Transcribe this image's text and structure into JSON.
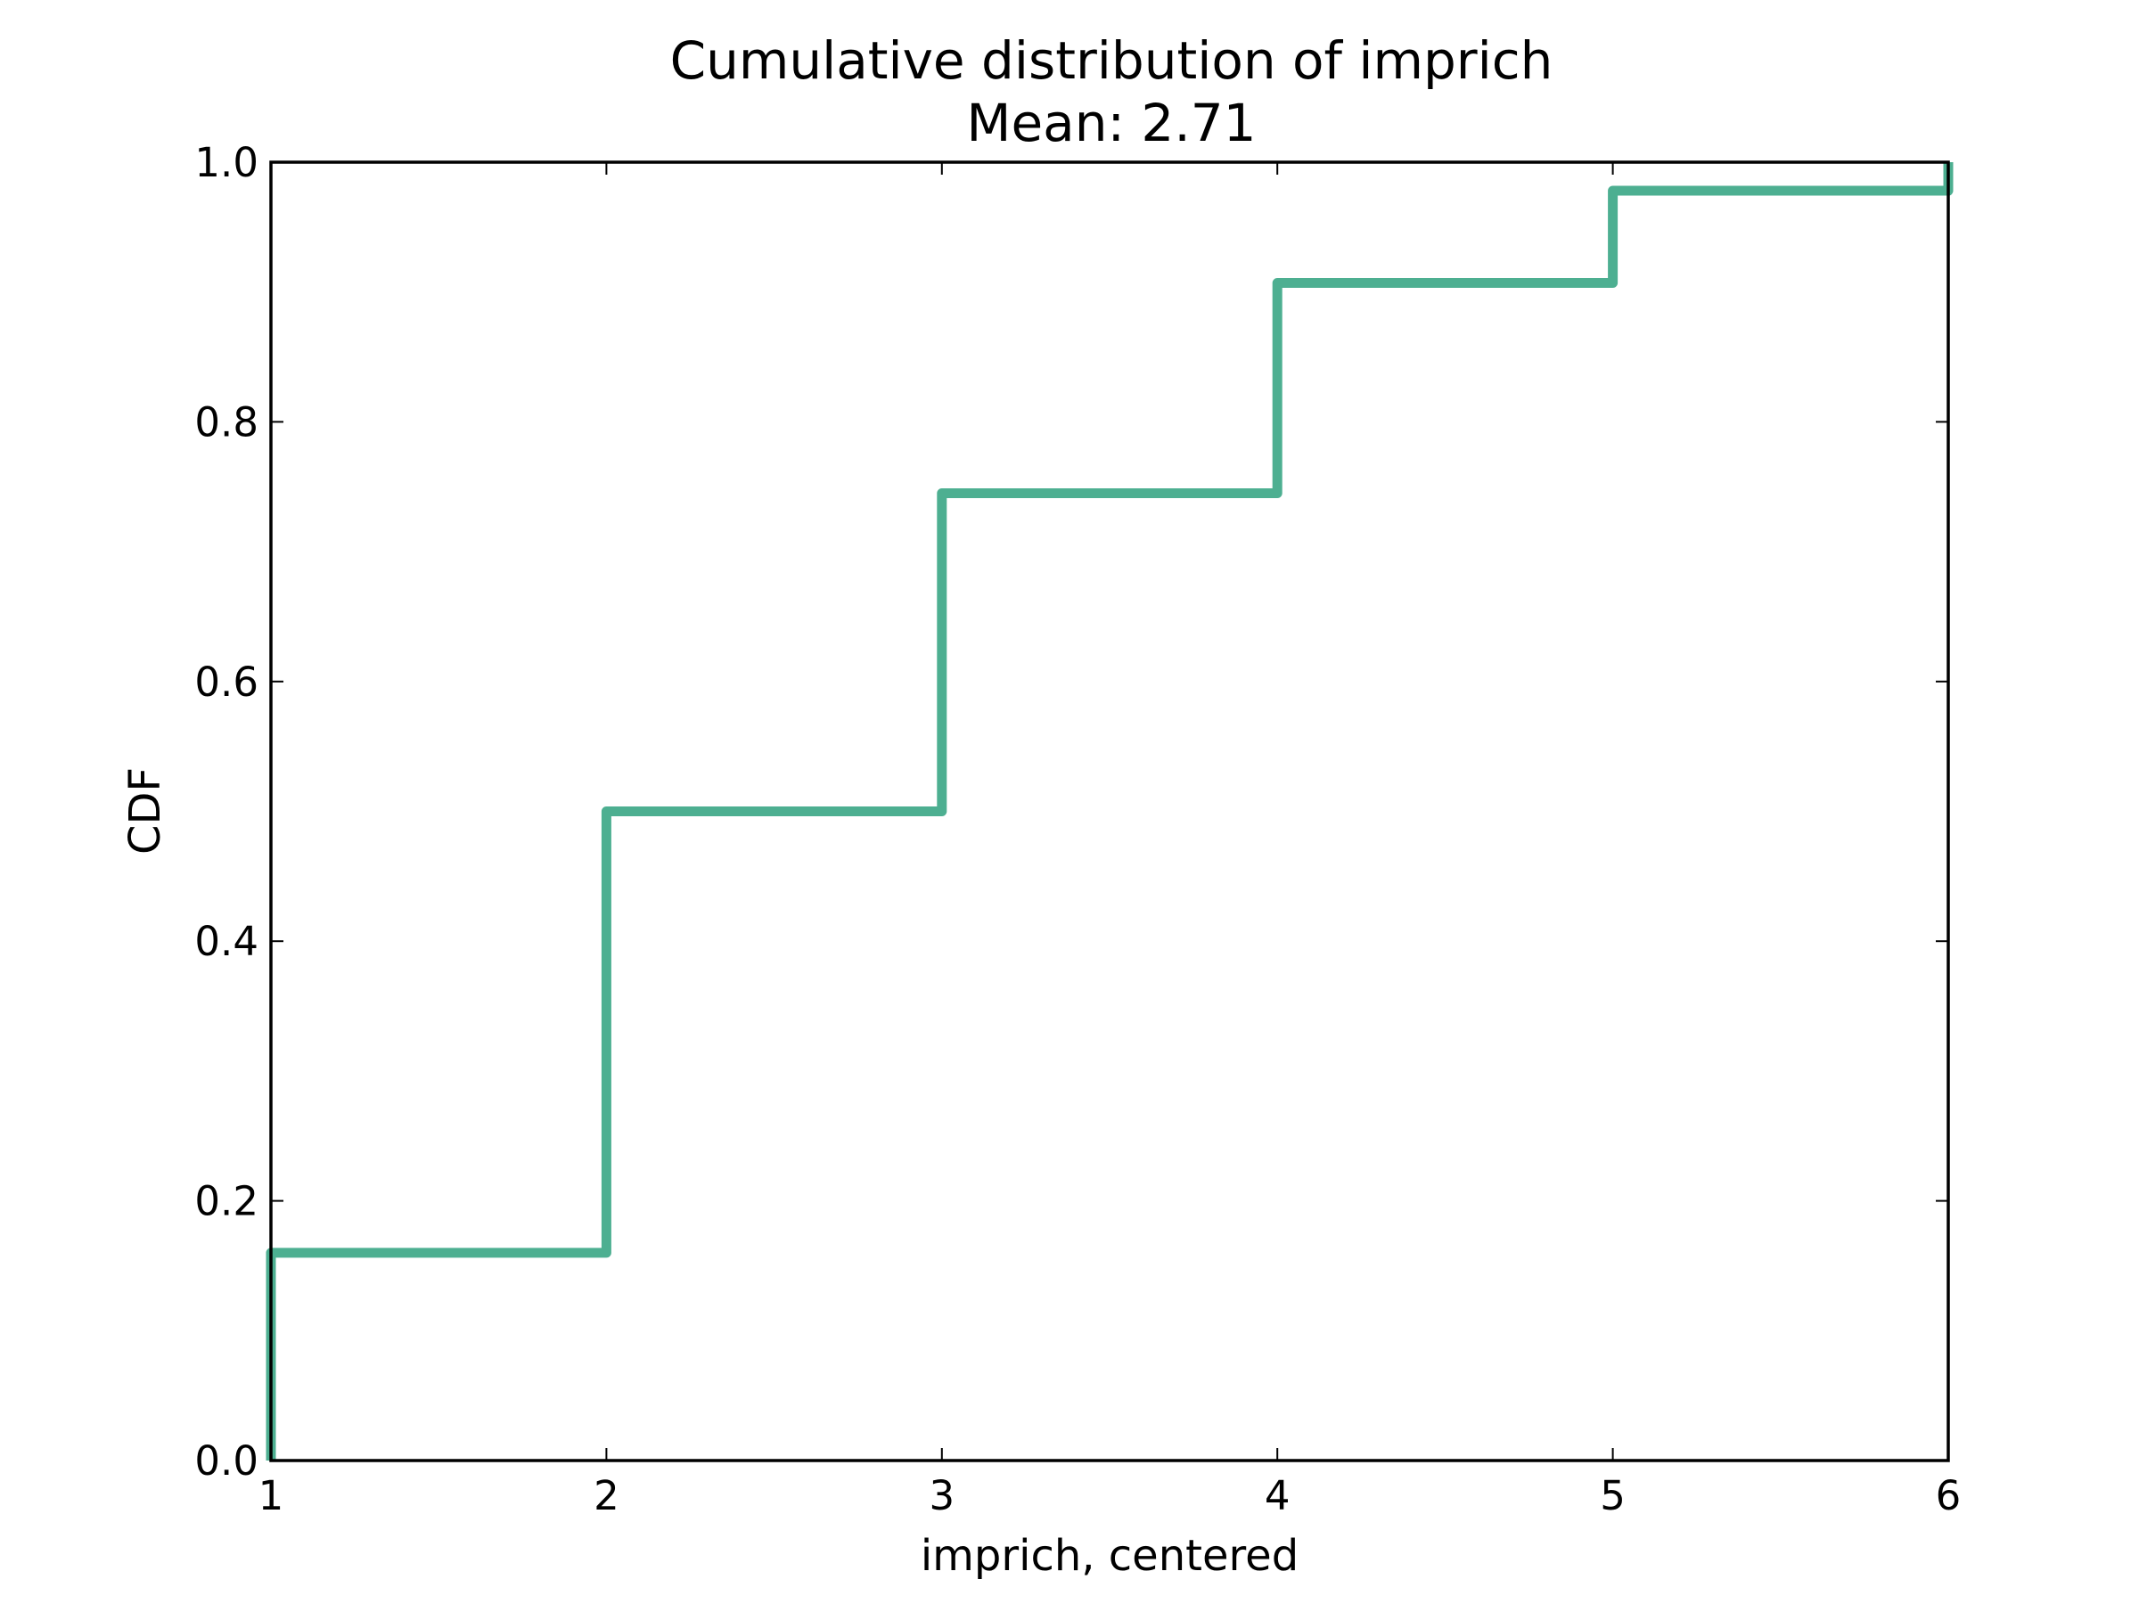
{
  "chart_data": {
    "type": "line",
    "title": "Cumulative distribution of imprich",
    "subtitle": "Mean: 2.71",
    "xlabel": "imprich, centered",
    "ylabel": "CDF",
    "xlim": [
      1,
      6
    ],
    "ylim": [
      0,
      1
    ],
    "x_ticks": [
      "1",
      "2",
      "3",
      "4",
      "5",
      "6"
    ],
    "y_ticks": [
      "0.0",
      "0.2",
      "0.4",
      "0.6",
      "0.8",
      "1.0"
    ],
    "grid": false,
    "step": true,
    "series": [
      {
        "color": "#4daf91",
        "x": [
          1,
          2,
          3,
          4,
          5,
          6
        ],
        "y": [
          0.16,
          0.5,
          0.745,
          0.907,
          0.978,
          1.0
        ]
      }
    ]
  }
}
